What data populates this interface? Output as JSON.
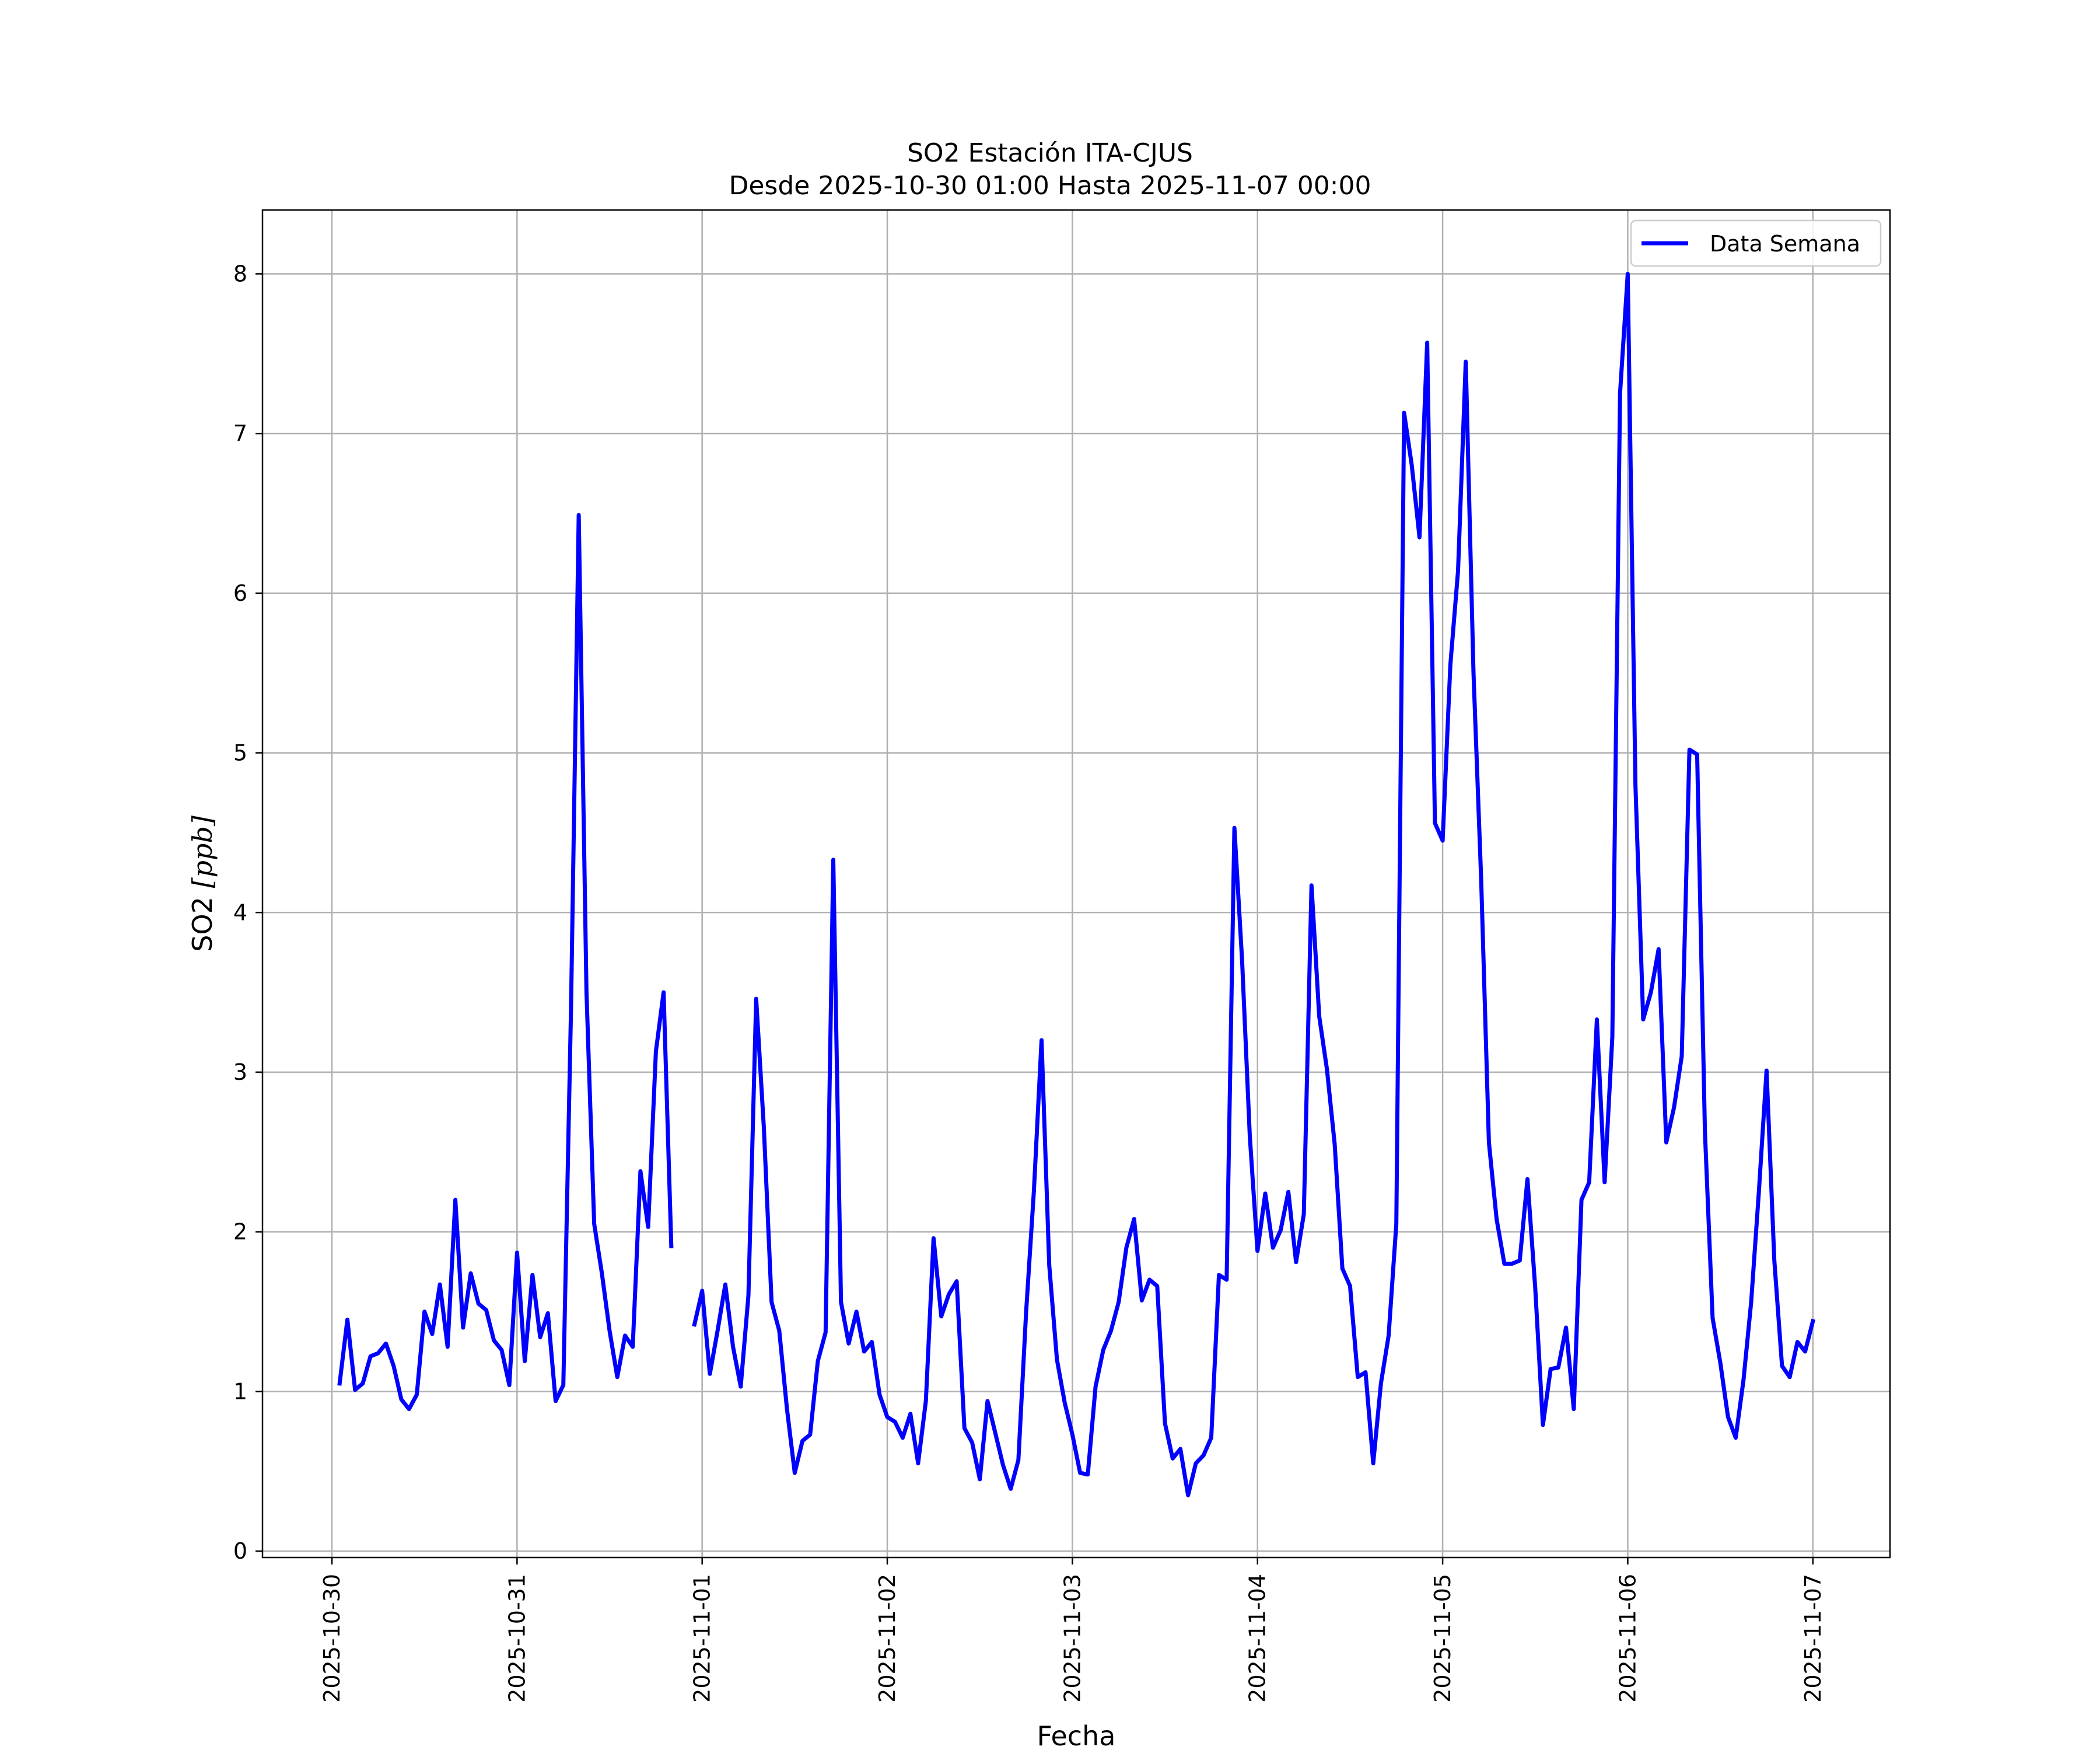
{
  "chart_data": {
    "type": "line",
    "title": "SO2 Estación ITA-CJUS",
    "subtitle": "Desde 2025-10-30 01:00 Hasta 2025-11-07 00:00",
    "xlabel": "Fecha",
    "ylabel": "SO2 [ppb]",
    "ylabel_main": "SO2 ",
    "ylabel_unit": "[ppb]",
    "x_tick_labels": [
      "2025-10-30",
      "2025-10-31",
      "2025-11-01",
      "2025-11-02",
      "2025-11-03",
      "2025-11-04",
      "2025-11-05",
      "2025-11-06",
      "2025-11-07"
    ],
    "y_ticks": [
      0,
      1,
      2,
      3,
      4,
      5,
      6,
      7,
      8
    ],
    "xlim": [
      "2025-10-29T15:00",
      "2025-11-07T10:00"
    ],
    "ylim": [
      -0.04,
      8.4
    ],
    "grid": true,
    "legend_position": "top-right",
    "colors": {
      "series": "#0000ff",
      "grid": "#b0b0b0",
      "axes": "#000000"
    },
    "series": [
      {
        "name": "Data Semana",
        "points": [
          [
            "2025-10-30T01:00",
            1.05
          ],
          [
            "2025-10-30T02:00",
            1.45
          ],
          [
            "2025-10-30T03:00",
            1.01
          ],
          [
            "2025-10-30T04:00",
            1.05
          ],
          [
            "2025-10-30T05:00",
            1.22
          ],
          [
            "2025-10-30T06:00",
            1.24
          ],
          [
            "2025-10-30T07:00",
            1.3
          ],
          [
            "2025-10-30T08:00",
            1.16
          ],
          [
            "2025-10-30T09:00",
            0.95
          ],
          [
            "2025-10-30T10:00",
            0.89
          ],
          [
            "2025-10-30T11:00",
            0.98
          ],
          [
            "2025-10-30T12:00",
            1.5
          ],
          [
            "2025-10-30T13:00",
            1.36
          ],
          [
            "2025-10-30T14:00",
            1.67
          ],
          [
            "2025-10-30T15:00",
            1.28
          ],
          [
            "2025-10-30T16:00",
            2.2
          ],
          [
            "2025-10-30T17:00",
            1.4
          ],
          [
            "2025-10-30T18:00",
            1.74
          ],
          [
            "2025-10-30T19:00",
            1.55
          ],
          [
            "2025-10-30T20:00",
            1.51
          ],
          [
            "2025-10-30T21:00",
            1.32
          ],
          [
            "2025-10-30T22:00",
            1.26
          ],
          [
            "2025-10-30T23:00",
            1.04
          ],
          [
            "2025-10-31T00:00",
            1.87
          ],
          [
            "2025-10-31T01:00",
            1.19
          ],
          [
            "2025-10-31T02:00",
            1.73
          ],
          [
            "2025-10-31T03:00",
            1.34
          ],
          [
            "2025-10-31T04:00",
            1.49
          ],
          [
            "2025-10-31T05:00",
            0.94
          ],
          [
            "2025-10-31T06:00",
            1.04
          ],
          [
            "2025-10-31T07:00",
            3.4
          ],
          [
            "2025-10-31T08:00",
            6.49
          ],
          [
            "2025-10-31T09:00",
            3.5
          ],
          [
            "2025-10-31T10:00",
            2.05
          ],
          [
            "2025-10-31T11:00",
            1.74
          ],
          [
            "2025-10-31T12:00",
            1.38
          ],
          [
            "2025-10-31T13:00",
            1.09
          ],
          [
            "2025-10-31T14:00",
            1.35
          ],
          [
            "2025-10-31T15:00",
            1.28
          ],
          [
            "2025-10-31T16:00",
            2.38
          ],
          [
            "2025-10-31T17:00",
            2.03
          ],
          [
            "2025-10-31T18:00",
            3.13
          ],
          [
            "2025-10-31T19:00",
            3.5
          ],
          [
            "2025-10-31T20:00",
            1.91
          ],
          [
            "2025-10-31T21:00",
            null
          ],
          [
            "2025-10-31T22:00",
            null
          ],
          [
            "2025-10-31T23:00",
            1.42
          ],
          [
            "2025-11-01T00:00",
            1.63
          ],
          [
            "2025-11-01T01:00",
            1.11
          ],
          [
            "2025-11-01T02:00",
            1.38
          ],
          [
            "2025-11-01T03:00",
            1.67
          ],
          [
            "2025-11-01T04:00",
            1.28
          ],
          [
            "2025-11-01T05:00",
            1.03
          ],
          [
            "2025-11-01T06:00",
            1.6
          ],
          [
            "2025-11-01T07:00",
            3.46
          ],
          [
            "2025-11-01T08:00",
            2.65
          ],
          [
            "2025-11-01T09:00",
            1.56
          ],
          [
            "2025-11-01T10:00",
            1.38
          ],
          [
            "2025-11-01T11:00",
            0.89
          ],
          [
            "2025-11-01T12:00",
            0.49
          ],
          [
            "2025-11-01T13:00",
            0.69
          ],
          [
            "2025-11-01T14:00",
            0.73
          ],
          [
            "2025-11-01T15:00",
            1.19
          ],
          [
            "2025-11-01T16:00",
            1.37
          ],
          [
            "2025-11-01T17:00",
            4.33
          ],
          [
            "2025-11-01T18:00",
            1.56
          ],
          [
            "2025-11-01T19:00",
            1.3
          ],
          [
            "2025-11-01T20:00",
            1.5
          ],
          [
            "2025-11-01T21:00",
            1.25
          ],
          [
            "2025-11-01T22:00",
            1.31
          ],
          [
            "2025-11-01T23:00",
            0.98
          ],
          [
            "2025-11-02T00:00",
            0.84
          ],
          [
            "2025-11-02T01:00",
            0.81
          ],
          [
            "2025-11-02T02:00",
            0.71
          ],
          [
            "2025-11-02T03:00",
            0.86
          ],
          [
            "2025-11-02T04:00",
            0.55
          ],
          [
            "2025-11-02T05:00",
            0.94
          ],
          [
            "2025-11-02T06:00",
            1.96
          ],
          [
            "2025-11-02T07:00",
            1.47
          ],
          [
            "2025-11-02T08:00",
            1.61
          ],
          [
            "2025-11-02T09:00",
            1.69
          ],
          [
            "2025-11-02T10:00",
            0.77
          ],
          [
            "2025-11-02T11:00",
            0.68
          ],
          [
            "2025-11-02T12:00",
            0.45
          ],
          [
            "2025-11-02T13:00",
            0.94
          ],
          [
            "2025-11-02T14:00",
            0.74
          ],
          [
            "2025-11-02T15:00",
            0.54
          ],
          [
            "2025-11-02T16:00",
            0.39
          ],
          [
            "2025-11-02T17:00",
            0.57
          ],
          [
            "2025-11-02T18:00",
            1.5
          ],
          [
            "2025-11-02T19:00",
            2.25
          ],
          [
            "2025-11-02T20:00",
            3.2
          ],
          [
            "2025-11-02T21:00",
            1.79
          ],
          [
            "2025-11-02T22:00",
            1.2
          ],
          [
            "2025-11-02T23:00",
            0.93
          ],
          [
            "2025-11-03T00:00",
            0.73
          ],
          [
            "2025-11-03T01:00",
            0.49
          ],
          [
            "2025-11-03T02:00",
            0.48
          ],
          [
            "2025-11-03T03:00",
            1.03
          ],
          [
            "2025-11-03T04:00",
            1.26
          ],
          [
            "2025-11-03T05:00",
            1.38
          ],
          [
            "2025-11-03T06:00",
            1.56
          ],
          [
            "2025-11-03T07:00",
            1.9
          ],
          [
            "2025-11-03T08:00",
            2.08
          ],
          [
            "2025-11-03T09:00",
            1.57
          ],
          [
            "2025-11-03T10:00",
            1.7
          ],
          [
            "2025-11-03T11:00",
            1.66
          ],
          [
            "2025-11-03T12:00",
            0.8
          ],
          [
            "2025-11-03T13:00",
            0.58
          ],
          [
            "2025-11-03T14:00",
            0.64
          ],
          [
            "2025-11-03T15:00",
            0.35
          ],
          [
            "2025-11-03T16:00",
            0.55
          ],
          [
            "2025-11-03T17:00",
            0.6
          ],
          [
            "2025-11-03T18:00",
            0.71
          ],
          [
            "2025-11-03T19:00",
            1.73
          ],
          [
            "2025-11-03T20:00",
            1.7
          ],
          [
            "2025-11-03T21:00",
            4.53
          ],
          [
            "2025-11-03T22:00",
            3.7
          ],
          [
            "2025-11-03T23:00",
            2.6
          ],
          [
            "2025-11-04T00:00",
            1.88
          ],
          [
            "2025-11-04T01:00",
            2.24
          ],
          [
            "2025-11-04T02:00",
            1.9
          ],
          [
            "2025-11-04T03:00",
            2.01
          ],
          [
            "2025-11-04T04:00",
            2.25
          ],
          [
            "2025-11-04T05:00",
            1.81
          ],
          [
            "2025-11-04T06:00",
            2.11
          ],
          [
            "2025-11-04T07:00",
            4.17
          ],
          [
            "2025-11-04T08:00",
            3.35
          ],
          [
            "2025-11-04T09:00",
            3.02
          ],
          [
            "2025-11-04T10:00",
            2.55
          ],
          [
            "2025-11-04T11:00",
            1.77
          ],
          [
            "2025-11-04T12:00",
            1.66
          ],
          [
            "2025-11-04T13:00",
            1.09
          ],
          [
            "2025-11-04T14:00",
            1.12
          ],
          [
            "2025-11-04T15:00",
            0.55
          ],
          [
            "2025-11-04T16:00",
            1.05
          ],
          [
            "2025-11-04T17:00",
            1.35
          ],
          [
            "2025-11-04T18:00",
            2.05
          ],
          [
            "2025-11-04T19:00",
            7.13
          ],
          [
            "2025-11-04T20:00",
            6.8
          ],
          [
            "2025-11-04T21:00",
            6.35
          ],
          [
            "2025-11-04T22:00",
            7.57
          ],
          [
            "2025-11-04T23:00",
            4.56
          ],
          [
            "2025-11-05T00:00",
            4.45
          ],
          [
            "2025-11-05T01:00",
            5.55
          ],
          [
            "2025-11-05T02:00",
            6.14
          ],
          [
            "2025-11-05T03:00",
            7.45
          ],
          [
            "2025-11-05T04:00",
            5.5
          ],
          [
            "2025-11-05T05:00",
            4.2
          ],
          [
            "2025-11-05T06:00",
            2.56
          ],
          [
            "2025-11-05T07:00",
            2.08
          ],
          [
            "2025-11-05T08:00",
            1.8
          ],
          [
            "2025-11-05T09:00",
            1.8
          ],
          [
            "2025-11-05T10:00",
            1.82
          ],
          [
            "2025-11-05T11:00",
            2.33
          ],
          [
            "2025-11-05T12:00",
            1.65
          ],
          [
            "2025-11-05T13:00",
            0.79
          ],
          [
            "2025-11-05T14:00",
            1.14
          ],
          [
            "2025-11-05T15:00",
            1.15
          ],
          [
            "2025-11-05T16:00",
            1.4
          ],
          [
            "2025-11-05T17:00",
            0.89
          ],
          [
            "2025-11-05T18:00",
            2.2
          ],
          [
            "2025-11-05T19:00",
            2.31
          ],
          [
            "2025-11-05T20:00",
            3.33
          ],
          [
            "2025-11-05T21:00",
            2.31
          ],
          [
            "2025-11-05T22:00",
            3.22
          ],
          [
            "2025-11-05T23:00",
            7.25
          ],
          [
            "2025-11-06T00:00",
            8.0
          ],
          [
            "2025-11-06T01:00",
            4.8
          ],
          [
            "2025-11-06T02:00",
            3.33
          ],
          [
            "2025-11-06T03:00",
            3.5
          ],
          [
            "2025-11-06T04:00",
            3.77
          ],
          [
            "2025-11-06T05:00",
            2.56
          ],
          [
            "2025-11-06T06:00",
            2.78
          ],
          [
            "2025-11-06T07:00",
            3.1
          ],
          [
            "2025-11-06T08:00",
            5.02
          ],
          [
            "2025-11-06T09:00",
            4.99
          ],
          [
            "2025-11-06T10:00",
            2.63
          ],
          [
            "2025-11-06T11:00",
            1.46
          ],
          [
            "2025-11-06T12:00",
            1.18
          ],
          [
            "2025-11-06T13:00",
            0.84
          ],
          [
            "2025-11-06T14:00",
            0.71
          ],
          [
            "2025-11-06T15:00",
            1.07
          ],
          [
            "2025-11-06T16:00",
            1.56
          ],
          [
            "2025-11-06T17:00",
            2.25
          ],
          [
            "2025-11-06T18:00",
            3.01
          ],
          [
            "2025-11-06T19:00",
            1.82
          ],
          [
            "2025-11-06T20:00",
            1.16
          ],
          [
            "2025-11-06T21:00",
            1.09
          ],
          [
            "2025-11-06T22:00",
            1.31
          ],
          [
            "2025-11-06T23:00",
            1.25
          ],
          [
            "2025-11-07T00:00",
            1.44
          ]
        ]
      }
    ]
  }
}
